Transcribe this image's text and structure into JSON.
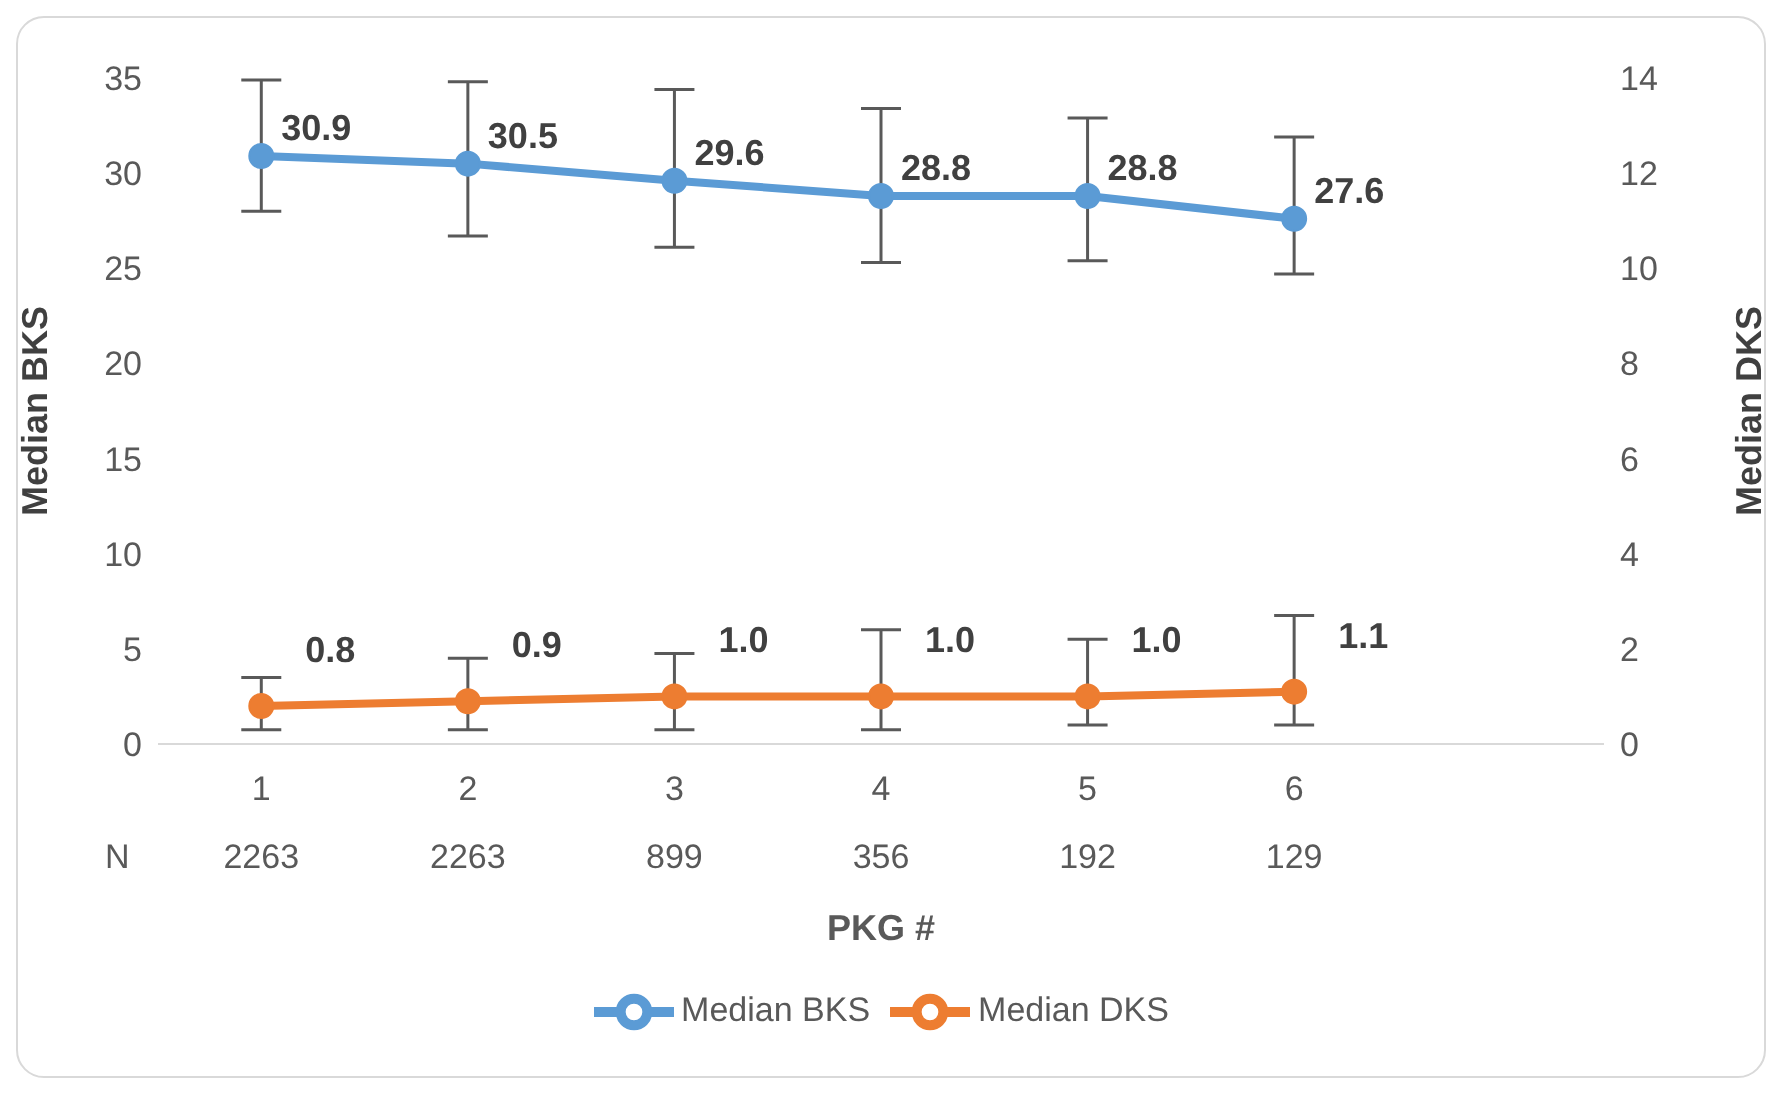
{
  "chart_data": {
    "type": "line",
    "xlabel": "PKG #",
    "ylabel": "Median BKS",
    "y2label": "Median DKS",
    "categories": [
      "1",
      "2",
      "3",
      "4",
      "5",
      "6",
      null
    ],
    "series": [
      {
        "name": "Median BKS",
        "color": "#5b9bd5",
        "values": [
          30.9,
          30.5,
          29.6,
          28.8,
          28.8,
          27.6,
          null
        ],
        "errors": [
          [
            28.0,
            34.9
          ],
          [
            26.7,
            34.8
          ],
          [
            26.1,
            34.4
          ],
          [
            25.3,
            33.4
          ],
          [
            25.4,
            32.9
          ],
          [
            24.7,
            31.9
          ],
          null
        ],
        "value_labels": [
          "30.9",
          "30.5",
          "29.6",
          "28.8",
          "28.8",
          "27.6",
          null
        ]
      },
      {
        "name": "Median DKS",
        "color": "#ed7d31",
        "axis": "y2",
        "values": [
          0.8,
          0.9,
          1.0,
          1.0,
          1.0,
          1.1,
          null
        ],
        "errors": [
          [
            0.3,
            1.4
          ],
          [
            0.3,
            1.8
          ],
          [
            0.3,
            1.9
          ],
          [
            0.3,
            2.4
          ],
          [
            0.4,
            2.2
          ],
          [
            0.4,
            2.7
          ],
          null
        ],
        "value_labels": [
          "0.8",
          "0.9",
          "1.0",
          "1.0",
          "1.0",
          "1.1",
          null
        ]
      }
    ],
    "ylim": [
      0,
      35
    ],
    "yticks": [
      0,
      5,
      10,
      15,
      20,
      25,
      30,
      35
    ],
    "y2lim": [
      0,
      14
    ],
    "y2ticks": [
      0,
      2,
      4,
      6,
      8,
      10,
      12,
      14
    ],
    "annotations": [
      "N",
      "2263",
      "2263",
      "899",
      "356",
      "192",
      "129"
    ],
    "marker": "circle",
    "line_style": "solid",
    "grid": false,
    "legend": "bottom"
  }
}
